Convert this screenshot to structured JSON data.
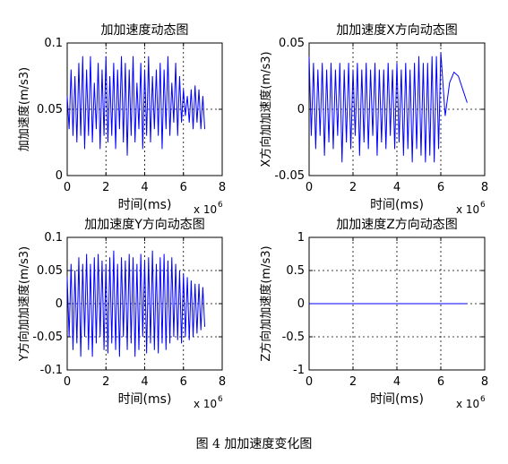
{
  "caption": "图 4 加加速度变化图",
  "chart_data": [
    {
      "type": "line",
      "title": "加加速度动态图",
      "xlabel": "时间(ms)",
      "ylabel": "加加速度(m/s3)",
      "x_multiplier": "x 10",
      "x_exponent": "6",
      "xlim": [
        0,
        8
      ],
      "ylim": [
        0,
        0.1
      ],
      "xticks": [
        "0",
        "2",
        "4",
        "6",
        "8"
      ],
      "yticks": [
        "0",
        "0.05",
        "0.1"
      ],
      "grid": true,
      "series_color": "#0000ff",
      "series": [
        {
          "x": [
            0.0,
            0.1,
            0.2,
            0.3,
            0.4,
            0.5,
            0.6,
            0.7,
            0.8,
            0.9,
            1.0,
            1.1,
            1.2,
            1.3,
            1.4,
            1.5,
            1.6,
            1.7,
            1.8,
            1.9,
            2.0,
            2.1,
            2.2,
            2.3,
            2.4,
            2.5,
            2.6,
            2.7,
            2.8,
            2.9,
            3.0,
            3.1,
            3.2,
            3.3,
            3.4,
            3.5,
            3.6,
            3.7,
            3.8,
            3.9,
            4.0,
            4.1,
            4.2,
            4.3,
            4.4,
            4.5,
            4.6,
            4.7,
            4.8,
            4.9,
            5.0,
            5.1,
            5.2,
            5.3,
            5.4,
            5.5,
            5.6,
            5.7,
            5.8,
            5.9,
            6.0,
            6.1,
            6.2,
            6.3,
            6.4,
            6.5,
            6.6,
            6.7,
            6.8,
            6.9,
            7.0,
            7.1
          ],
          "y": [
            0.06,
            0.035,
            0.08,
            0.03,
            0.075,
            0.025,
            0.085,
            0.03,
            0.09,
            0.02,
            0.08,
            0.03,
            0.09,
            0.025,
            0.07,
            0.035,
            0.085,
            0.02,
            0.08,
            0.03,
            0.09,
            0.025,
            0.075,
            0.03,
            0.085,
            0.02,
            0.08,
            0.035,
            0.09,
            0.025,
            0.085,
            0.015,
            0.08,
            0.03,
            0.09,
            0.025,
            0.07,
            0.035,
            0.085,
            0.02,
            0.08,
            0.03,
            0.09,
            0.025,
            0.075,
            0.035,
            0.08,
            0.03,
            0.085,
            0.02,
            0.08,
            0.035,
            0.09,
            0.03,
            0.07,
            0.04,
            0.085,
            0.03,
            0.075,
            0.04,
            0.065,
            0.045,
            0.06,
            0.04,
            0.065,
            0.035,
            0.068,
            0.04,
            0.065,
            0.035,
            0.06,
            0.035
          ]
        }
      ]
    },
    {
      "type": "line",
      "title": "加加速度X方向动态图",
      "xlabel": "时间(ms)",
      "ylabel": "X方向加加速度(m/s3)",
      "x_multiplier": "x 10",
      "x_exponent": "6",
      "xlim": [
        0,
        8
      ],
      "ylim": [
        -0.05,
        0.05
      ],
      "xticks": [
        "0",
        "2",
        "4",
        "6",
        "8"
      ],
      "yticks": [
        "-0.05",
        "0",
        "0.05"
      ],
      "grid": true,
      "series_color": "#0000ff",
      "series": [
        {
          "x": [
            0.0,
            0.1,
            0.2,
            0.3,
            0.4,
            0.5,
            0.6,
            0.7,
            0.8,
            0.9,
            1.0,
            1.1,
            1.2,
            1.3,
            1.4,
            1.5,
            1.6,
            1.7,
            1.8,
            1.9,
            2.0,
            2.1,
            2.2,
            2.3,
            2.4,
            2.5,
            2.6,
            2.7,
            2.8,
            2.9,
            3.0,
            3.1,
            3.2,
            3.3,
            3.4,
            3.5,
            3.6,
            3.7,
            3.8,
            3.9,
            4.0,
            4.1,
            4.2,
            4.3,
            4.4,
            4.5,
            4.6,
            4.7,
            4.8,
            4.9,
            5.0,
            5.1,
            5.2,
            5.3,
            5.4,
            5.5,
            5.6,
            5.7,
            5.8,
            5.9,
            6.0,
            6.2,
            6.4,
            6.6,
            6.8,
            7.0,
            7.2
          ],
          "y": [
            0.04,
            -0.02,
            0.035,
            -0.03,
            0.03,
            -0.02,
            0.035,
            -0.035,
            0.03,
            -0.025,
            0.035,
            -0.03,
            0.03,
            -0.02,
            0.035,
            -0.04,
            0.03,
            -0.025,
            0.035,
            -0.03,
            0.03,
            -0.02,
            0.035,
            -0.035,
            0.03,
            -0.025,
            0.035,
            -0.03,
            0.03,
            -0.02,
            0.035,
            -0.035,
            0.03,
            -0.025,
            0.03,
            -0.03,
            0.035,
            -0.02,
            0.03,
            -0.03,
            0.035,
            -0.025,
            0.03,
            -0.035,
            0.035,
            -0.03,
            0.03,
            -0.04,
            0.035,
            -0.03,
            0.04,
            -0.035,
            0.035,
            -0.04,
            0.035,
            -0.035,
            0.04,
            -0.04,
            0.04,
            -0.03,
            0.043,
            -0.005,
            0.02,
            0.028,
            0.025,
            0.015,
            0.005
          ]
        }
      ]
    },
    {
      "type": "line",
      "title": "加加速度Y方向动态图",
      "xlabel": "时间(ms)",
      "ylabel": "Y方向加加速度(m/s3)",
      "x_multiplier": "x 10",
      "x_exponent": "6",
      "xlim": [
        0,
        8
      ],
      "ylim": [
        -0.1,
        0.1
      ],
      "xticks": [
        "0",
        "2",
        "4",
        "6",
        "8"
      ],
      "yticks": [
        "-0.1",
        "-0.05",
        "0",
        "0.05",
        "0.1"
      ],
      "grid": true,
      "series_color": "#0000ff",
      "series": [
        {
          "x": [
            0.0,
            0.1,
            0.2,
            0.3,
            0.4,
            0.5,
            0.6,
            0.7,
            0.8,
            0.9,
            1.0,
            1.1,
            1.2,
            1.3,
            1.4,
            1.5,
            1.6,
            1.7,
            1.8,
            1.9,
            2.0,
            2.1,
            2.2,
            2.3,
            2.4,
            2.5,
            2.6,
            2.7,
            2.8,
            2.9,
            3.0,
            3.1,
            3.2,
            3.3,
            3.4,
            3.5,
            3.6,
            3.7,
            3.8,
            3.9,
            4.0,
            4.1,
            4.2,
            4.3,
            4.4,
            4.5,
            4.6,
            4.7,
            4.8,
            4.9,
            5.0,
            5.1,
            5.2,
            5.3,
            5.4,
            5.5,
            5.6,
            5.7,
            5.8,
            5.9,
            6.0,
            6.1,
            6.2,
            6.3,
            6.4,
            6.5,
            6.6,
            6.7,
            6.8,
            6.9,
            7.0,
            7.1
          ],
          "y": [
            0.04,
            -0.05,
            0.06,
            -0.07,
            0.05,
            -0.06,
            0.07,
            -0.08,
            0.06,
            -0.05,
            0.075,
            -0.07,
            0.06,
            -0.08,
            0.07,
            -0.06,
            0.075,
            -0.05,
            0.065,
            -0.07,
            0.06,
            -0.075,
            0.07,
            -0.06,
            0.08,
            -0.07,
            0.06,
            -0.08,
            0.07,
            -0.05,
            0.065,
            -0.07,
            0.075,
            -0.06,
            0.07,
            -0.08,
            0.06,
            -0.07,
            0.075,
            -0.05,
            0.065,
            -0.075,
            0.07,
            -0.06,
            0.08,
            -0.07,
            0.06,
            -0.075,
            0.07,
            -0.06,
            0.075,
            -0.07,
            0.065,
            -0.06,
            0.07,
            -0.05,
            0.06,
            -0.055,
            0.05,
            -0.06,
            0.045,
            -0.05,
            0.04,
            -0.055,
            0.035,
            -0.05,
            0.03,
            -0.045,
            0.03,
            -0.04,
            0.025,
            -0.035
          ]
        }
      ]
    },
    {
      "type": "line",
      "title": "加加速度Z方向动态图",
      "xlabel": "时间(ms)",
      "ylabel": "Z方向加加速度(m/s3)",
      "x_multiplier": "x 10",
      "x_exponent": "6",
      "xlim": [
        0,
        8
      ],
      "ylim": [
        -1,
        1
      ],
      "xticks": [
        "0",
        "2",
        "4",
        "6",
        "8"
      ],
      "yticks": [
        "-1",
        "-0.5",
        "0",
        "0.5",
        "1"
      ],
      "grid": true,
      "series_color": "#0000ff",
      "series": [
        {
          "x": [
            0,
            7.2
          ],
          "y": [
            0,
            0
          ]
        }
      ]
    }
  ]
}
